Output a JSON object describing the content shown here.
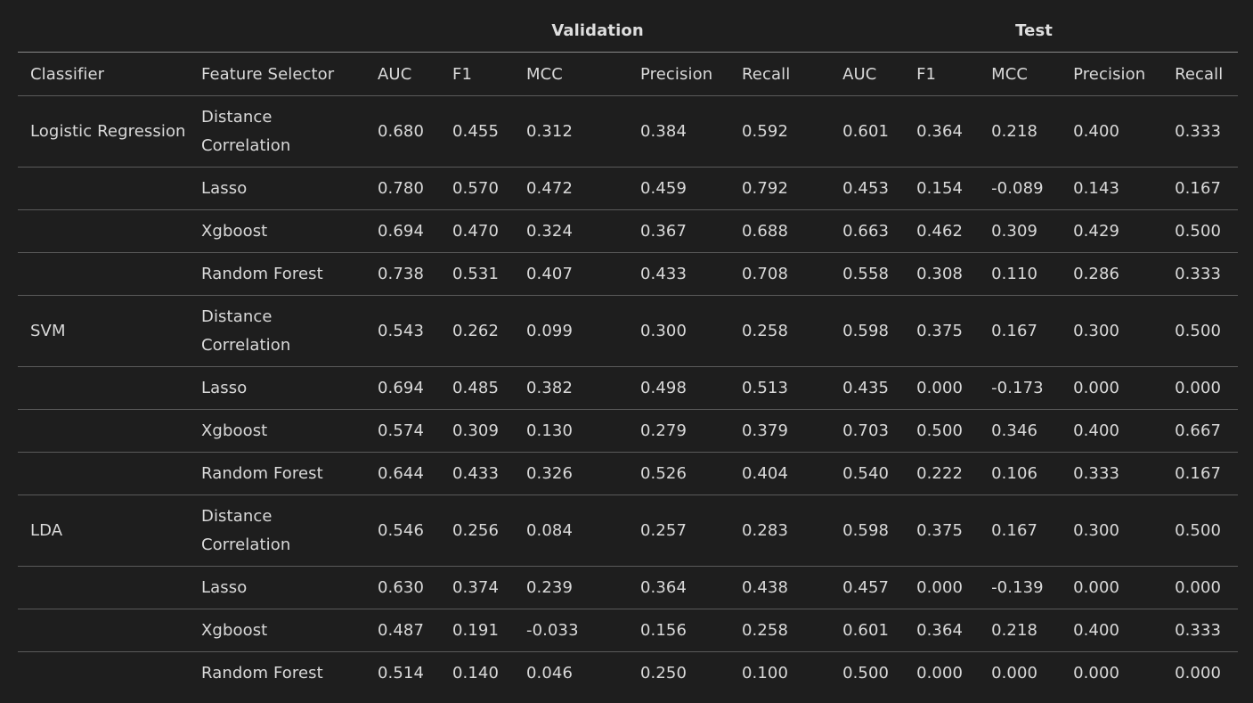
{
  "group_headers": [
    "Validation",
    "Test"
  ],
  "column_headers": [
    "Classifier",
    "Feature Selector",
    "AUC",
    "F1",
    "MCC",
    "Precision",
    "Recall",
    "AUC",
    "F1",
    "MCC",
    "Precision",
    "Recall"
  ],
  "rows": [
    {
      "classifier": "Logistic Regression",
      "selector": "Distance Correlation",
      "values": [
        "0.680",
        "0.455",
        "0.312",
        "0.384",
        "0.592",
        "0.601",
        "0.364",
        "0.218",
        "0.400",
        "0.333"
      ]
    },
    {
      "classifier": "",
      "selector": "Lasso",
      "values": [
        "0.780",
        "0.570",
        "0.472",
        "0.459",
        "0.792",
        "0.453",
        "0.154",
        "-0.089",
        "0.143",
        "0.167"
      ]
    },
    {
      "classifier": "",
      "selector": "Xgboost",
      "values": [
        "0.694",
        "0.470",
        "0.324",
        "0.367",
        "0.688",
        "0.663",
        "0.462",
        "0.309",
        "0.429",
        "0.500"
      ]
    },
    {
      "classifier": "",
      "selector": "Random Forest",
      "values": [
        "0.738",
        "0.531",
        "0.407",
        "0.433",
        "0.708",
        "0.558",
        "0.308",
        "0.110",
        "0.286",
        "0.333"
      ]
    },
    {
      "classifier": "SVM",
      "selector": "Distance Correlation",
      "values": [
        "0.543",
        "0.262",
        "0.099",
        "0.300",
        "0.258",
        "0.598",
        "0.375",
        "0.167",
        "0.300",
        "0.500"
      ]
    },
    {
      "classifier": "",
      "selector": "Lasso",
      "values": [
        "0.694",
        "0.485",
        "0.382",
        "0.498",
        "0.513",
        "0.435",
        "0.000",
        "-0.173",
        "0.000",
        "0.000"
      ]
    },
    {
      "classifier": "",
      "selector": "Xgboost",
      "values": [
        "0.574",
        "0.309",
        "0.130",
        "0.279",
        "0.379",
        "0.703",
        "0.500",
        "0.346",
        "0.400",
        "0.667"
      ]
    },
    {
      "classifier": "",
      "selector": "Random Forest",
      "values": [
        "0.644",
        "0.433",
        "0.326",
        "0.526",
        "0.404",
        "0.540",
        "0.222",
        "0.106",
        "0.333",
        "0.167"
      ]
    },
    {
      "classifier": "LDA",
      "selector": "Distance Correlation",
      "values": [
        "0.546",
        "0.256",
        "0.084",
        "0.257",
        "0.283",
        "0.598",
        "0.375",
        "0.167",
        "0.300",
        "0.500"
      ]
    },
    {
      "classifier": "",
      "selector": "Lasso",
      "values": [
        "0.630",
        "0.374",
        "0.239",
        "0.364",
        "0.438",
        "0.457",
        "0.000",
        "-0.139",
        "0.000",
        "0.000"
      ]
    },
    {
      "classifier": "",
      "selector": "Xgboost",
      "values": [
        "0.487",
        "0.191",
        "-0.033",
        "0.156",
        "0.258",
        "0.601",
        "0.364",
        "0.218",
        "0.400",
        "0.333"
      ]
    },
    {
      "classifier": "",
      "selector": "Random Forest",
      "values": [
        "0.514",
        "0.140",
        "0.046",
        "0.250",
        "0.100",
        "0.500",
        "0.000",
        "0.000",
        "0.000",
        "0.000"
      ]
    }
  ],
  "colors": {
    "background": "#1e1e1e",
    "text": "#d9d9d9",
    "rule": "#5a5a5a"
  }
}
